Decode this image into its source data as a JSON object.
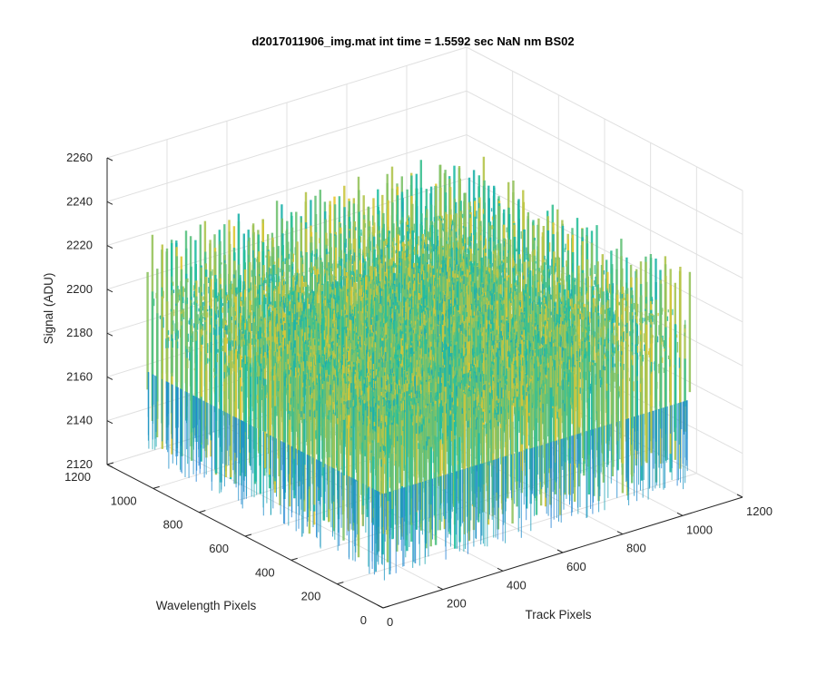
{
  "chart_data": {
    "type": "surface",
    "title": "d2017011906_img.mat int time = 1.5592 sec  NaN nm BS02",
    "xlabel": "Track Pixels",
    "ylabel": "Wavelength Pixels",
    "zlabel": "Signal (ADU)",
    "xlim": [
      0,
      1200
    ],
    "ylim": [
      0,
      1200
    ],
    "zlim": [
      2120,
      2260
    ],
    "x_ticks": [
      "0",
      "200",
      "400",
      "600",
      "800",
      "1000",
      "1200"
    ],
    "y_ticks": [
      "0",
      "200",
      "400",
      "600",
      "800",
      "1000",
      "1200"
    ],
    "z_ticks": [
      "2120",
      "2140",
      "2160",
      "2180",
      "2200",
      "2220",
      "2240",
      "2260"
    ],
    "grid": true,
    "colormap": "parula",
    "surface_extent": {
      "x": [
        0,
        1024
      ],
      "y": [
        0,
        1024
      ]
    },
    "signal_mean": 2190,
    "signal_range": [
      2135,
      2250
    ],
    "colors": {
      "low": "#1f7fd6",
      "mid": "#1fbfa0",
      "high": "#e6c62e"
    }
  }
}
